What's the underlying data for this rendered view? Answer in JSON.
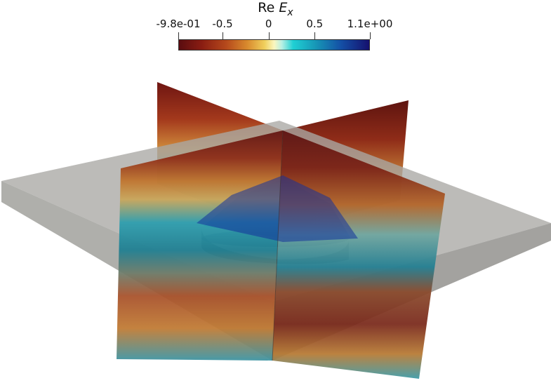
{
  "colorbar": {
    "title_prefix": "Re ",
    "title_var": "E",
    "title_sub": "x",
    "ticks": [
      {
        "label": "-9.8e-01",
        "value": -0.98
      },
      {
        "label": "-0.5",
        "value": -0.5
      },
      {
        "label": "0",
        "value": 0
      },
      {
        "label": "0.5",
        "value": 0.5
      },
      {
        "label": "1.1e+00",
        "value": 1.1
      }
    ],
    "range": [
      -0.98,
      1.1
    ],
    "colors": [
      "#5a0c10",
      "#b64a1c",
      "#f0cf5c",
      "#fbf7bf",
      "#1fd0d4",
      "#1450a6",
      "#15106e"
    ]
  },
  "scene": {
    "slab_color": "#a9a8a4",
    "cylinder_color": "#5b636b"
  }
}
